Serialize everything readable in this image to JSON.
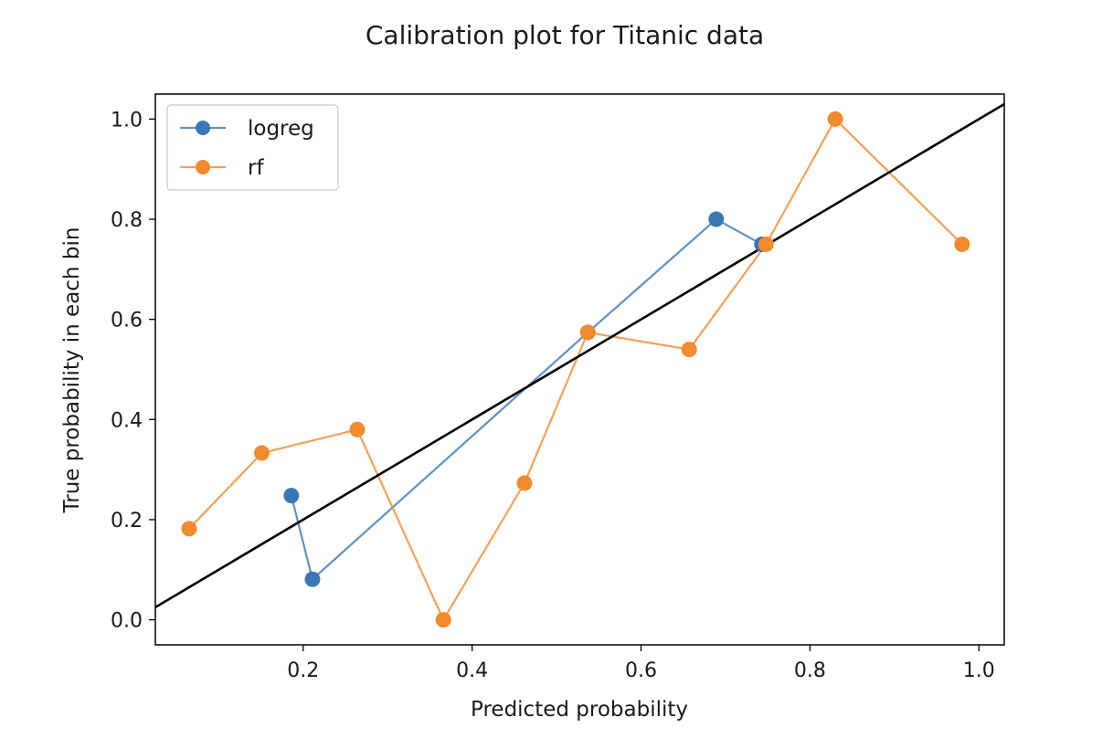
{
  "chart_data": {
    "type": "line",
    "title": "Calibration plot for Titanic data",
    "xlabel": "Predicted probability",
    "ylabel": "True probability in each bin",
    "xlim": [
      0.025,
      1.03
    ],
    "ylim": [
      -0.05,
      1.05
    ],
    "xticks": [
      0.2,
      0.4,
      0.6,
      0.8,
      1.0
    ],
    "xtick_labels": [
      "0.2",
      "0.4",
      "0.6",
      "0.8",
      "1.0"
    ],
    "yticks": [
      0.0,
      0.2,
      0.4,
      0.6,
      0.8,
      1.0
    ],
    "ytick_labels": [
      "0.0",
      "0.2",
      "0.4",
      "0.6",
      "0.8",
      "1.0"
    ],
    "grid": false,
    "legend_position": "top-left",
    "reference_line": {
      "x": [
        0.0,
        1.05
      ],
      "y": [
        0.0,
        1.05
      ],
      "color": "#000000"
    },
    "series": [
      {
        "name": "logreg",
        "color": "#3a77b4",
        "marker": "circle",
        "x": [
          0.186,
          0.211,
          0.537,
          0.689,
          0.743
        ],
        "y": [
          0.248,
          0.081,
          0.574,
          0.8,
          0.75
        ]
      },
      {
        "name": "rf",
        "color": "#f28a2e",
        "marker": "circle",
        "x": [
          0.065,
          0.151,
          0.264,
          0.366,
          0.462,
          0.537,
          0.657,
          0.748,
          0.83,
          0.98
        ],
        "y": [
          0.182,
          0.333,
          0.38,
          0.0,
          0.273,
          0.574,
          0.54,
          0.75,
          1.0,
          0.75
        ]
      }
    ]
  }
}
